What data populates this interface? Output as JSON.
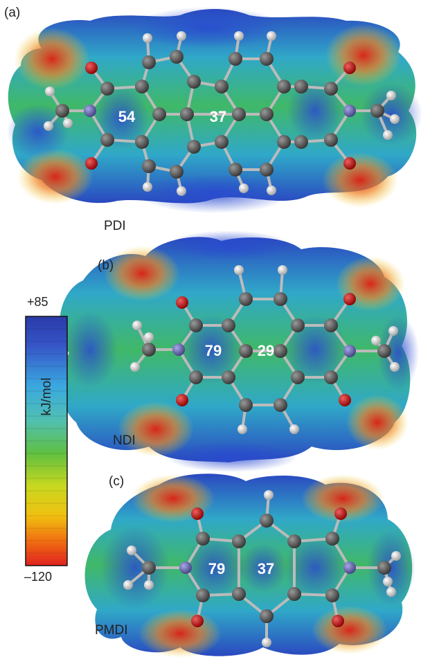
{
  "panels": [
    {
      "id": "a",
      "letter": "(a)",
      "name": "PDI",
      "values": [
        "54",
        "37"
      ]
    },
    {
      "id": "b",
      "letter": "(b)",
      "name": "NDI",
      "values": [
        "79",
        "29"
      ]
    },
    {
      "id": "c",
      "letter": "(c)",
      "name": "PMDI",
      "values": [
        "79",
        "37"
      ]
    }
  ],
  "scale": {
    "max": "+85",
    "min": "–120",
    "unit": "kJ/mol"
  },
  "colors": {
    "scale_top": "#2a3aa8",
    "scale_bottom": "#e02020",
    "carbon": "#555555",
    "oxygen": "#c01010",
    "nitrogen": "#6a6ab8",
    "hydrogen": "#e8e8e8"
  }
}
